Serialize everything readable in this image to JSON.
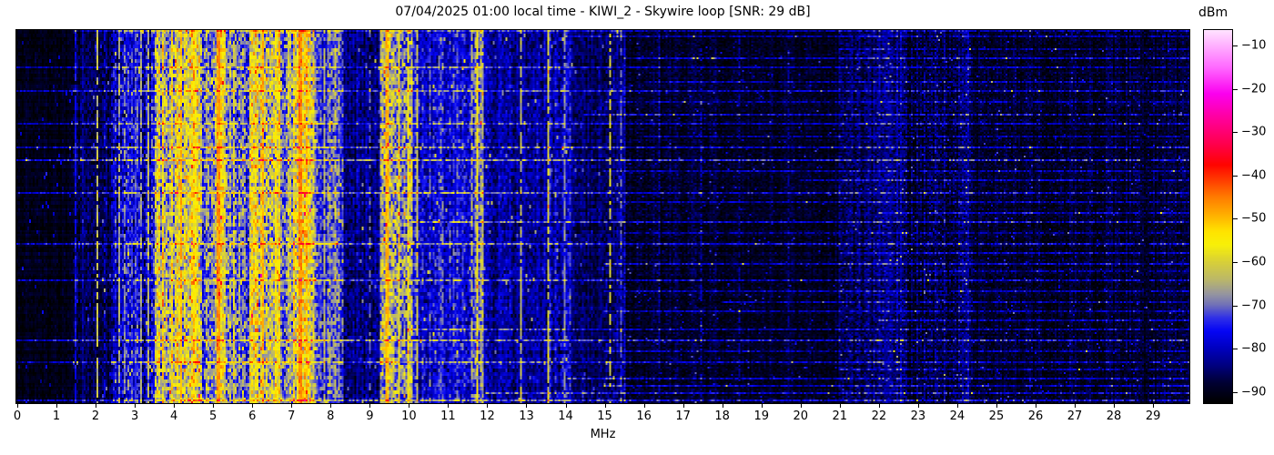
{
  "title": "07/04/2025 01:00 local time - KIWI_2 - Skywire loop [SNR: 29 dB]",
  "xlabel": "MHz",
  "colorbar": {
    "label": "dBm",
    "ticks": [
      -10,
      -20,
      -30,
      -40,
      -50,
      -60,
      -70,
      -80,
      -90
    ],
    "vmax": -6.4,
    "vmin": -92.6
  },
  "chart_data": {
    "type": "heatmap",
    "title": "07/04/2025 01:00 local time - KIWI_2 - Skywire loop [SNR: 29 dB]",
    "xlabel": "MHz",
    "x_ticks": [
      0,
      1,
      2,
      3,
      4,
      5,
      6,
      7,
      8,
      9,
      10,
      11,
      12,
      13,
      14,
      15,
      16,
      17,
      18,
      19,
      20,
      21,
      22,
      23,
      24,
      25,
      26,
      27,
      28,
      29
    ],
    "x_range": [
      0,
      29.95
    ],
    "colorbar_label": "dBm",
    "colorbar_range": [
      -92.6,
      -6.4
    ],
    "legend": "waterfall spectrogram, time (vertical) vs frequency MHz (horizontal), power in dBm",
    "colormap_stops": [
      [
        -92.6,
        "#000000"
      ],
      [
        -88,
        "#000033"
      ],
      [
        -84,
        "#000080"
      ],
      [
        -80,
        "#0000c0"
      ],
      [
        -76,
        "#0505f5"
      ],
      [
        -73,
        "#3030e8"
      ],
      [
        -70,
        "#7070b8"
      ],
      [
        -67.5,
        "#9595a0"
      ],
      [
        -64,
        "#bcb868"
      ],
      [
        -60,
        "#d8d038"
      ],
      [
        -56,
        "#f8f008"
      ],
      [
        -53,
        "#ffe400"
      ],
      [
        -49,
        "#ffae00"
      ],
      [
        -45,
        "#ff7c00"
      ],
      [
        -41,
        "#ff3c00"
      ],
      [
        -37.5,
        "#ff0400"
      ],
      [
        -33,
        "#ff0048"
      ],
      [
        -27,
        "#ff0098"
      ],
      [
        -21,
        "#fb00ef"
      ],
      [
        -15,
        "#ff68ff"
      ],
      [
        -10,
        "#ffaeff"
      ],
      [
        -6.4,
        "#ffe2ff"
      ]
    ],
    "bands": [
      {
        "f0": 0.0,
        "f1": 1.45,
        "base": -90.5,
        "var": 1.5
      },
      {
        "f0": 1.45,
        "f1": 2.4,
        "base": -87,
        "var": 3
      },
      {
        "f0": 2.4,
        "f1": 3.55,
        "base": -78,
        "var": 6
      },
      {
        "f0": 3.55,
        "f1": 4.75,
        "base": -62,
        "var": 8
      },
      {
        "f0": 4.75,
        "f1": 5.1,
        "base": -70,
        "var": 7
      },
      {
        "f0": 5.1,
        "f1": 5.35,
        "base": -55,
        "var": 7
      },
      {
        "f0": 5.35,
        "f1": 5.95,
        "base": -70,
        "var": 7
      },
      {
        "f0": 5.95,
        "f1": 6.75,
        "base": -60,
        "var": 8
      },
      {
        "f0": 6.75,
        "f1": 7.05,
        "base": -68,
        "var": 7
      },
      {
        "f0": 7.05,
        "f1": 7.6,
        "base": -57,
        "var": 8
      },
      {
        "f0": 7.6,
        "f1": 8.35,
        "base": -72,
        "var": 6
      },
      {
        "f0": 8.35,
        "f1": 9.3,
        "base": -84,
        "var": 4
      },
      {
        "f0": 9.3,
        "f1": 10.1,
        "base": -64,
        "var": 8
      },
      {
        "f0": 10.1,
        "f1": 11.6,
        "base": -77,
        "var": 5
      },
      {
        "f0": 11.6,
        "f1": 11.95,
        "base": -71,
        "var": 6
      },
      {
        "f0": 11.95,
        "f1": 13.5,
        "base": -82,
        "var": 4
      },
      {
        "f0": 13.5,
        "f1": 14.15,
        "base": -80,
        "var": 5
      },
      {
        "f0": 14.15,
        "f1": 15.05,
        "base": -86,
        "var": 3
      },
      {
        "f0": 15.05,
        "f1": 15.55,
        "base": -83,
        "var": 4
      },
      {
        "f0": 15.55,
        "f1": 18.0,
        "base": -89,
        "var": 2.5
      },
      {
        "f0": 18.0,
        "f1": 21.0,
        "base": -89.5,
        "var": 2.2
      },
      {
        "f0": 21.0,
        "f1": 24.4,
        "base": -86,
        "var": 3.5
      },
      {
        "f0": 24.4,
        "f1": 29.95,
        "base": -89,
        "var": 2.5
      }
    ],
    "carriers": [
      {
        "f": 1.49,
        "level": -77,
        "duty": 0.85,
        "w": 0.03
      },
      {
        "f": 1.7,
        "level": -82,
        "duty": 0.7,
        "w": 0.03
      },
      {
        "f": 2.05,
        "level": -63,
        "duty": 0.75,
        "w": 0.03
      },
      {
        "f": 2.25,
        "level": -80,
        "duty": 0.6,
        "w": 0.03
      },
      {
        "f": 2.62,
        "level": -66,
        "duty": 0.8,
        "w": 0.03
      },
      {
        "f": 2.78,
        "level": -68,
        "duty": 0.7,
        "w": 0.03
      },
      {
        "f": 3.02,
        "level": -72,
        "duty": 0.7,
        "w": 0.03
      },
      {
        "f": 3.2,
        "level": -67,
        "duty": 0.8,
        "w": 0.03
      },
      {
        "f": 3.35,
        "level": -64,
        "duty": 0.8,
        "w": 0.03
      },
      {
        "f": 4.2,
        "level": -50,
        "duty": 0.9,
        "w": 0.08
      },
      {
        "f": 4.55,
        "level": -55,
        "duty": 0.85,
        "w": 0.04
      },
      {
        "f": 5.17,
        "level": -47,
        "duty": 0.95,
        "w": 0.09
      },
      {
        "f": 5.55,
        "level": -60,
        "duty": 0.8,
        "w": 0.03
      },
      {
        "f": 6.3,
        "level": -49,
        "duty": 0.9,
        "w": 0.07
      },
      {
        "f": 6.62,
        "level": -54,
        "duty": 0.85,
        "w": 0.04
      },
      {
        "f": 7.25,
        "level": -46,
        "duty": 0.95,
        "w": 0.12
      },
      {
        "f": 7.42,
        "level": -50,
        "duty": 0.9,
        "w": 0.05
      },
      {
        "f": 7.85,
        "level": -64,
        "duty": 0.8,
        "w": 0.03
      },
      {
        "f": 8.1,
        "level": -68,
        "duty": 0.7,
        "w": 0.03
      },
      {
        "f": 9.05,
        "level": -72,
        "duty": 0.5,
        "w": 0.03
      },
      {
        "f": 9.48,
        "level": -50,
        "duty": 0.9,
        "w": 0.07
      },
      {
        "f": 9.78,
        "level": -58,
        "duty": 0.85,
        "w": 0.04
      },
      {
        "f": 10.02,
        "level": -56,
        "duty": 0.9,
        "w": 0.04
      },
      {
        "f": 10.25,
        "level": -62,
        "duty": 0.8,
        "w": 0.03
      },
      {
        "f": 11.62,
        "level": -64,
        "duty": 0.7,
        "w": 0.03
      },
      {
        "f": 11.78,
        "level": -56,
        "duty": 0.85,
        "w": 0.04
      },
      {
        "f": 12.9,
        "level": -64,
        "duty": 0.7,
        "w": 0.03
      },
      {
        "f": 13.6,
        "level": -61,
        "duty": 0.8,
        "w": 0.03
      },
      {
        "f": 14.0,
        "level": -68,
        "duty": 0.75,
        "w": 0.03
      },
      {
        "f": 15.15,
        "level": -61,
        "duty": 0.55,
        "w": 0.03
      },
      {
        "f": 15.45,
        "level": -72,
        "duty": 0.5,
        "w": 0.03
      },
      {
        "f": 16.4,
        "level": -82,
        "duty": 0.6,
        "w": 0.04
      },
      {
        "f": 17.5,
        "level": -80,
        "duty": 0.5,
        "w": 0.03
      },
      {
        "f": 18.45,
        "level": -83,
        "duty": 0.5,
        "w": 0.03
      },
      {
        "f": 19.7,
        "level": -84,
        "duty": 0.5,
        "w": 0.03
      },
      {
        "f": 21.5,
        "level": -83,
        "duty": 0.5,
        "w": 0.04
      },
      {
        "f": 22.3,
        "level": -82,
        "duty": 0.5,
        "w": 0.04
      },
      {
        "f": 23.2,
        "level": -83,
        "duty": 0.5,
        "w": 0.04
      }
    ],
    "streaks": [
      {
        "r": 0.0,
        "b": 7,
        "f0": 1.5,
        "f1": 30
      },
      {
        "r": 0.015,
        "b": 7,
        "f0": 14,
        "f1": 30
      },
      {
        "r": 0.05,
        "b": 6,
        "f0": 21,
        "f1": 30
      },
      {
        "r": 0.075,
        "b": 9,
        "f0": 15.5,
        "f1": 30
      },
      {
        "r": 0.1,
        "b": 7,
        "f0": 0,
        "f1": 30
      },
      {
        "r": 0.135,
        "b": 8,
        "f0": 16,
        "f1": 30
      },
      {
        "r": 0.163,
        "b": 9,
        "f0": 0,
        "f1": 30
      },
      {
        "r": 0.19,
        "b": 7,
        "f0": 15,
        "f1": 30
      },
      {
        "r": 0.225,
        "b": 11,
        "f0": 14.5,
        "f1": 30
      },
      {
        "r": 0.25,
        "b": 8,
        "f0": 0,
        "f1": 30
      },
      {
        "r": 0.285,
        "b": 7,
        "f0": 16,
        "f1": 30
      },
      {
        "r": 0.315,
        "b": 10,
        "f0": 0,
        "f1": 30
      },
      {
        "r": 0.346,
        "b": 12,
        "f0": 0,
        "f1": 30
      },
      {
        "r": 0.375,
        "b": 8,
        "f0": 15,
        "f1": 30
      },
      {
        "r": 0.4,
        "b": 9,
        "f0": 20,
        "f1": 30
      },
      {
        "r": 0.437,
        "b": 12,
        "f0": 0,
        "f1": 30
      },
      {
        "r": 0.46,
        "b": 7,
        "f0": 15,
        "f1": 30
      },
      {
        "r": 0.49,
        "b": 8,
        "f0": 22,
        "f1": 30
      },
      {
        "r": 0.515,
        "b": 10,
        "f0": 10,
        "f1": 30
      },
      {
        "r": 0.545,
        "b": 7,
        "f0": 15.5,
        "f1": 30
      },
      {
        "r": 0.573,
        "b": 11,
        "f0": 0,
        "f1": 30
      },
      {
        "r": 0.6,
        "b": 8,
        "f0": 21,
        "f1": 30
      },
      {
        "r": 0.625,
        "b": 9,
        "f0": 15,
        "f1": 30
      },
      {
        "r": 0.645,
        "b": 7,
        "f0": 23,
        "f1": 30
      },
      {
        "r": 0.67,
        "b": 10,
        "f0": 0,
        "f1": 30
      },
      {
        "r": 0.7,
        "b": 8,
        "f0": 15,
        "f1": 30
      },
      {
        "r": 0.73,
        "b": 9,
        "f0": 18,
        "f1": 30
      },
      {
        "r": 0.755,
        "b": 7,
        "f0": 15,
        "f1": 30
      },
      {
        "r": 0.78,
        "b": 8,
        "f0": 22,
        "f1": 30
      },
      {
        "r": 0.805,
        "b": 9,
        "f0": 10,
        "f1": 30
      },
      {
        "r": 0.834,
        "b": 12,
        "f0": 0,
        "f1": 30
      },
      {
        "r": 0.862,
        "b": 8,
        "f0": 15,
        "f1": 30
      },
      {
        "r": 0.89,
        "b": 10,
        "f0": 0,
        "f1": 30
      },
      {
        "r": 0.912,
        "b": 7,
        "f0": 21,
        "f1": 30
      },
      {
        "r": 0.935,
        "b": 9,
        "f0": 14,
        "f1": 30
      },
      {
        "r": 0.955,
        "b": 8,
        "f0": 15,
        "f1": 30
      },
      {
        "r": 0.975,
        "b": 10,
        "f0": 12,
        "f1": 30
      },
      {
        "r": 0.995,
        "b": 11,
        "f0": 0,
        "f1": 30
      }
    ],
    "streak_gaps": [
      {
        "f0": 28.68,
        "f1": 28.95
      }
    ],
    "noise": {
      "spike_prob": 0.018,
      "row_gain": 1.3,
      "pair_rows_below_mhz": 15.5
    },
    "grid": {
      "cols": 645,
      "rows": 205
    }
  }
}
